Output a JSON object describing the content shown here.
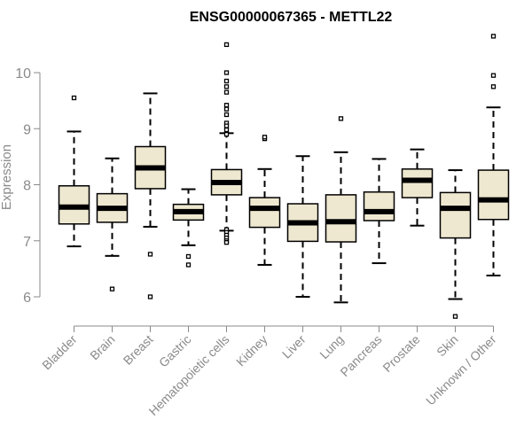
{
  "chart_data": {
    "type": "boxplot",
    "title": "ENSG00000067365 - METTL22",
    "ylabel": "Expression",
    "xlabel": "",
    "ylim": [
      5.65,
      10.75
    ],
    "yticks": [
      6,
      7,
      8,
      9,
      10
    ],
    "grid": false,
    "box_fill": "#efe8d0",
    "box_stroke": "#000000",
    "median_color": "#000000",
    "axis_color": "#8a8a8a",
    "categories": [
      "Bladder",
      "Brain",
      "Breast",
      "Gastric",
      "Hematopoietic cells",
      "Kidney",
      "Liver",
      "Lung",
      "Pancreas",
      "Prostate",
      "Skin",
      "Unknown / Other"
    ],
    "boxes": [
      {
        "category": "Bladder",
        "whisker_low": 6.9,
        "q1": 7.3,
        "median": 7.6,
        "q3": 7.98,
        "whisker_high": 8.95,
        "outliers": [
          9.55
        ]
      },
      {
        "category": "Brain",
        "whisker_low": 6.73,
        "q1": 7.33,
        "median": 7.58,
        "q3": 7.84,
        "whisker_high": 8.47,
        "outliers": [
          6.14
        ]
      },
      {
        "category": "Breast",
        "whisker_low": 7.25,
        "q1": 7.93,
        "median": 8.3,
        "q3": 8.68,
        "whisker_high": 9.63,
        "outliers": [
          6.76,
          6.0
        ]
      },
      {
        "category": "Gastric",
        "whisker_low": 6.92,
        "q1": 7.37,
        "median": 7.52,
        "q3": 7.65,
        "whisker_high": 7.92,
        "outliers": [
          6.72,
          6.57
        ]
      },
      {
        "category": "Hematopoietic cells",
        "whisker_low": 7.18,
        "q1": 7.82,
        "median": 8.04,
        "q3": 8.27,
        "whisker_high": 8.92,
        "outliers": [
          10.5,
          10.0,
          9.85,
          9.75,
          9.65,
          9.42,
          9.35,
          9.25,
          9.1,
          9.05,
          8.98,
          8.9,
          7.2,
          7.15,
          7.1,
          7.05,
          7.0,
          6.97
        ]
      },
      {
        "category": "Kidney",
        "whisker_low": 6.57,
        "q1": 7.24,
        "median": 7.58,
        "q3": 7.77,
        "whisker_high": 8.28,
        "outliers": [
          8.82,
          8.85
        ]
      },
      {
        "category": "Liver",
        "whisker_low": 6.0,
        "q1": 6.99,
        "median": 7.32,
        "q3": 7.66,
        "whisker_high": 8.51,
        "outliers": []
      },
      {
        "category": "Lung",
        "whisker_low": 5.9,
        "q1": 6.98,
        "median": 7.34,
        "q3": 7.82,
        "whisker_high": 8.58,
        "outliers": [
          9.18
        ]
      },
      {
        "category": "Pancreas",
        "whisker_low": 6.6,
        "q1": 7.36,
        "median": 7.52,
        "q3": 7.87,
        "whisker_high": 8.46,
        "outliers": []
      },
      {
        "category": "Prostate",
        "whisker_low": 7.27,
        "q1": 7.77,
        "median": 8.08,
        "q3": 8.28,
        "whisker_high": 8.63,
        "outliers": []
      },
      {
        "category": "Skin",
        "whisker_low": 5.96,
        "q1": 7.05,
        "median": 7.58,
        "q3": 7.86,
        "whisker_high": 8.26,
        "outliers": [
          5.65
        ]
      },
      {
        "category": "Unknown / Other",
        "whisker_low": 6.38,
        "q1": 7.38,
        "median": 7.73,
        "q3": 8.26,
        "whisker_high": 9.38,
        "outliers": [
          10.65,
          9.95,
          9.75
        ]
      }
    ]
  }
}
